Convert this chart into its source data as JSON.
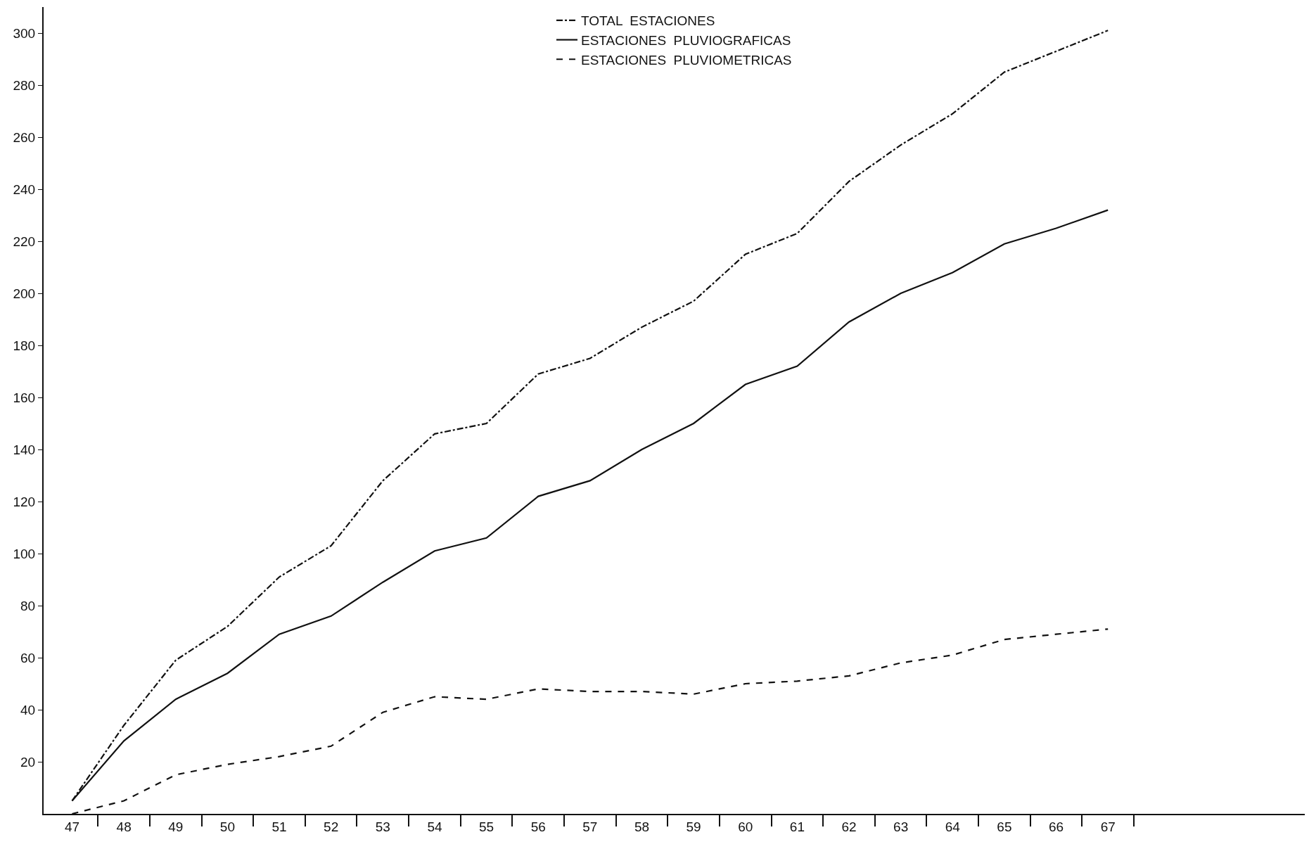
{
  "chart_data": {
    "type": "line",
    "x": [
      47,
      48,
      49,
      50,
      51,
      52,
      53,
      54,
      55,
      56,
      57,
      58,
      59,
      60,
      61,
      62,
      63,
      64,
      65,
      66,
      67
    ],
    "series": [
      {
        "name": "TOTAL  ESTACIONES",
        "color": "#111111",
        "line_style": "dashdot",
        "values": [
          5,
          34,
          59,
          72,
          91,
          103,
          128,
          146,
          150,
          169,
          175,
          187,
          197,
          215,
          223,
          243,
          257,
          269,
          285,
          293,
          301
        ]
      },
      {
        "name": "ESTACIONES  PLUVIOGRAFICAS",
        "color": "#111111",
        "line_style": "solid",
        "values": [
          5,
          28,
          44,
          54,
          69,
          76,
          89,
          101,
          106,
          122,
          128,
          140,
          150,
          165,
          172,
          189,
          200,
          208,
          219,
          225,
          232
        ]
      },
      {
        "name": "ESTACIONES  PLUVIOMETRICAS",
        "color": "#111111",
        "line_style": "dashed",
        "values": [
          0,
          5,
          15,
          19,
          22,
          26,
          39,
          45,
          44,
          48,
          47,
          47,
          46,
          50,
          51,
          53,
          58,
          61,
          67,
          69,
          71
        ]
      }
    ],
    "xlim": [
      46.45,
      70.8
    ],
    "xticks": [
      {
        "value": 47,
        "label": "47"
      },
      {
        "value": 48,
        "label": "48"
      },
      {
        "value": 49,
        "label": "49"
      },
      {
        "value": 50,
        "label": "50"
      },
      {
        "value": 51,
        "label": "51"
      },
      {
        "value": 52,
        "label": "52"
      },
      {
        "value": 53,
        "label": "53"
      },
      {
        "value": 54,
        "label": "54"
      },
      {
        "value": 55,
        "label": "55"
      },
      {
        "value": 56,
        "label": "56"
      },
      {
        "value": 57,
        "label": "57"
      },
      {
        "value": 58,
        "label": "58"
      },
      {
        "value": 59,
        "label": "59"
      },
      {
        "value": 60,
        "label": "60"
      },
      {
        "value": 61,
        "label": "61"
      },
      {
        "value": 62,
        "label": "62"
      },
      {
        "value": 63,
        "label": "63"
      },
      {
        "value": 64,
        "label": "64"
      },
      {
        "value": 65,
        "label": "65"
      },
      {
        "value": 66,
        "label": "66"
      },
      {
        "value": 67,
        "label": "67"
      },
      {
        "value": 47.5,
        "label": null
      },
      {
        "value": 48.5,
        "label": null
      },
      {
        "value": 49.5,
        "label": null
      },
      {
        "value": 50.5,
        "label": null
      },
      {
        "value": 51.5,
        "label": null
      },
      {
        "value": 52.5,
        "label": null
      },
      {
        "value": 53.5,
        "label": null
      },
      {
        "value": 54.5,
        "label": null
      },
      {
        "value": 55.5,
        "label": null
      },
      {
        "value": 56.5,
        "label": null
      },
      {
        "value": 57.5,
        "label": null
      },
      {
        "value": 58.5,
        "label": null
      },
      {
        "value": 59.5,
        "label": null
      },
      {
        "value": 60.5,
        "label": null
      },
      {
        "value": 61.5,
        "label": null
      },
      {
        "value": 62.5,
        "label": null
      },
      {
        "value": 63.5,
        "label": null
      },
      {
        "value": 64.5,
        "label": null
      },
      {
        "value": 65.5,
        "label": null
      },
      {
        "value": 66.5,
        "label": null
      },
      {
        "value": 67.5,
        "label": null
      }
    ],
    "ylim": [
      0,
      310
    ],
    "yticks": [
      20,
      40,
      60,
      80,
      100,
      120,
      140,
      160,
      180,
      200,
      220,
      240,
      260,
      280,
      300
    ],
    "legend": "top",
    "marker": "none"
  }
}
